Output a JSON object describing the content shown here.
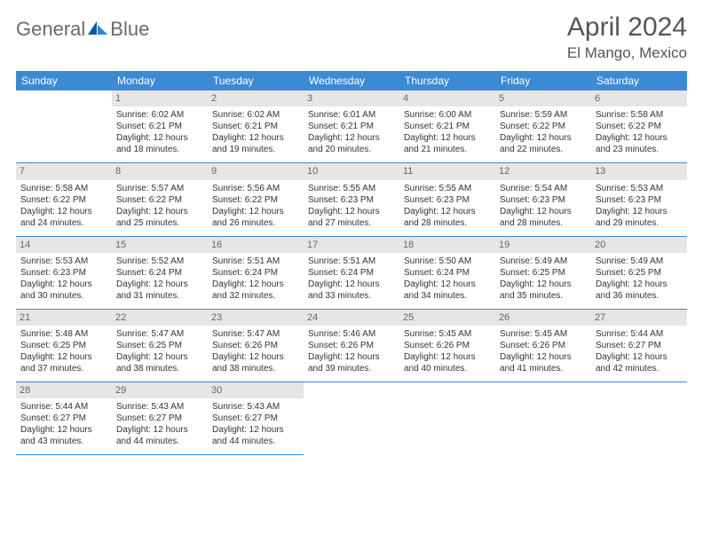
{
  "logo": {
    "text_general": "General",
    "text_blue": "Blue"
  },
  "header": {
    "month": "April 2024",
    "location": "El Mango, Mexico"
  },
  "colors": {
    "header_bg": "#3b8bd4",
    "header_text": "#ffffff",
    "daynum_bg": "#e6e6e6",
    "daynum_text": "#666666",
    "body_text": "#333333",
    "rule": "#3b8bd4",
    "logo_gray": "#6a6a6a",
    "logo_blue": "#3b7fc4"
  },
  "weekdays": [
    "Sunday",
    "Monday",
    "Tuesday",
    "Wednesday",
    "Thursday",
    "Friday",
    "Saturday"
  ],
  "grid": {
    "first_weekday_index": 1,
    "days_in_month": 30
  },
  "days": {
    "1": {
      "sunrise": "6:02 AM",
      "sunset": "6:21 PM",
      "daylight": "12 hours and 18 minutes."
    },
    "2": {
      "sunrise": "6:02 AM",
      "sunset": "6:21 PM",
      "daylight": "12 hours and 19 minutes."
    },
    "3": {
      "sunrise": "6:01 AM",
      "sunset": "6:21 PM",
      "daylight": "12 hours and 20 minutes."
    },
    "4": {
      "sunrise": "6:00 AM",
      "sunset": "6:21 PM",
      "daylight": "12 hours and 21 minutes."
    },
    "5": {
      "sunrise": "5:59 AM",
      "sunset": "6:22 PM",
      "daylight": "12 hours and 22 minutes."
    },
    "6": {
      "sunrise": "5:58 AM",
      "sunset": "6:22 PM",
      "daylight": "12 hours and 23 minutes."
    },
    "7": {
      "sunrise": "5:58 AM",
      "sunset": "6:22 PM",
      "daylight": "12 hours and 24 minutes."
    },
    "8": {
      "sunrise": "5:57 AM",
      "sunset": "6:22 PM",
      "daylight": "12 hours and 25 minutes."
    },
    "9": {
      "sunrise": "5:56 AM",
      "sunset": "6:22 PM",
      "daylight": "12 hours and 26 minutes."
    },
    "10": {
      "sunrise": "5:55 AM",
      "sunset": "6:23 PM",
      "daylight": "12 hours and 27 minutes."
    },
    "11": {
      "sunrise": "5:55 AM",
      "sunset": "6:23 PM",
      "daylight": "12 hours and 28 minutes."
    },
    "12": {
      "sunrise": "5:54 AM",
      "sunset": "6:23 PM",
      "daylight": "12 hours and 28 minutes."
    },
    "13": {
      "sunrise": "5:53 AM",
      "sunset": "6:23 PM",
      "daylight": "12 hours and 29 minutes."
    },
    "14": {
      "sunrise": "5:53 AM",
      "sunset": "6:23 PM",
      "daylight": "12 hours and 30 minutes."
    },
    "15": {
      "sunrise": "5:52 AM",
      "sunset": "6:24 PM",
      "daylight": "12 hours and 31 minutes."
    },
    "16": {
      "sunrise": "5:51 AM",
      "sunset": "6:24 PM",
      "daylight": "12 hours and 32 minutes."
    },
    "17": {
      "sunrise": "5:51 AM",
      "sunset": "6:24 PM",
      "daylight": "12 hours and 33 minutes."
    },
    "18": {
      "sunrise": "5:50 AM",
      "sunset": "6:24 PM",
      "daylight": "12 hours and 34 minutes."
    },
    "19": {
      "sunrise": "5:49 AM",
      "sunset": "6:25 PM",
      "daylight": "12 hours and 35 minutes."
    },
    "20": {
      "sunrise": "5:49 AM",
      "sunset": "6:25 PM",
      "daylight": "12 hours and 36 minutes."
    },
    "21": {
      "sunrise": "5:48 AM",
      "sunset": "6:25 PM",
      "daylight": "12 hours and 37 minutes."
    },
    "22": {
      "sunrise": "5:47 AM",
      "sunset": "6:25 PM",
      "daylight": "12 hours and 38 minutes."
    },
    "23": {
      "sunrise": "5:47 AM",
      "sunset": "6:26 PM",
      "daylight": "12 hours and 38 minutes."
    },
    "24": {
      "sunrise": "5:46 AM",
      "sunset": "6:26 PM",
      "daylight": "12 hours and 39 minutes."
    },
    "25": {
      "sunrise": "5:45 AM",
      "sunset": "6:26 PM",
      "daylight": "12 hours and 40 minutes."
    },
    "26": {
      "sunrise": "5:45 AM",
      "sunset": "6:26 PM",
      "daylight": "12 hours and 41 minutes."
    },
    "27": {
      "sunrise": "5:44 AM",
      "sunset": "6:27 PM",
      "daylight": "12 hours and 42 minutes."
    },
    "28": {
      "sunrise": "5:44 AM",
      "sunset": "6:27 PM",
      "daylight": "12 hours and 43 minutes."
    },
    "29": {
      "sunrise": "5:43 AM",
      "sunset": "6:27 PM",
      "daylight": "12 hours and 44 minutes."
    },
    "30": {
      "sunrise": "5:43 AM",
      "sunset": "6:27 PM",
      "daylight": "12 hours and 44 minutes."
    }
  },
  "labels": {
    "sunrise": "Sunrise:",
    "sunset": "Sunset:",
    "daylight": "Daylight:"
  }
}
